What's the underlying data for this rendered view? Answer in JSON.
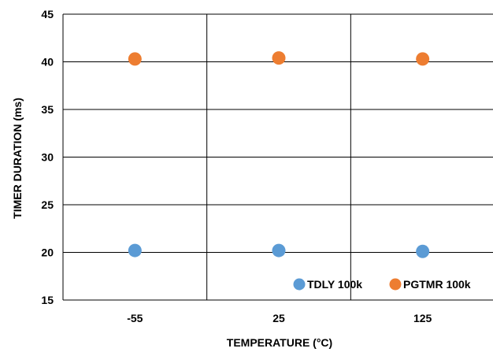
{
  "chart_data": {
    "type": "scatter",
    "xlabel": "TEMPERATURE (°C)",
    "ylabel": "TIMER DURATION (ms)",
    "categories": [
      "-55",
      "25",
      "125"
    ],
    "ylim": [
      15,
      45
    ],
    "yticks": [
      15,
      20,
      25,
      30,
      35,
      40,
      45
    ],
    "grid": true,
    "legend_position": "bottom-right",
    "series": [
      {
        "name": "TDLY 100k",
        "color": "#5B9BD5",
        "values": [
          20.2,
          20.2,
          20.1
        ]
      },
      {
        "name": "PGTMR 100k",
        "color": "#ED7D31",
        "values": [
          40.3,
          40.4,
          40.3
        ]
      }
    ]
  }
}
